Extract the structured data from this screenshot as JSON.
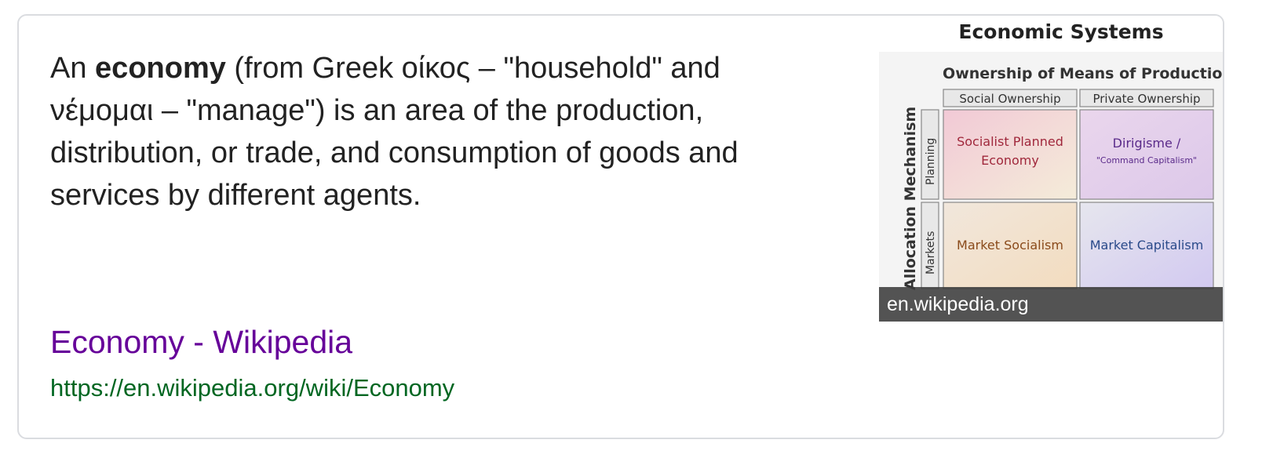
{
  "snippet": {
    "prefix": "An ",
    "term": "economy",
    "text": " (from Greek οίκος – \"household\" and νέμομαι – \"manage\") is an area of the production, distribution, or trade, and consumption of goods and services by different agents."
  },
  "result": {
    "title": "Economy - Wikipedia",
    "url": "https://en.wikipedia.org/wiki/Economy"
  },
  "thumbnail": {
    "caption": "en.wikipedia.org",
    "diagram": {
      "title": "Economic Systems",
      "column_header": "Ownership of Means of Production",
      "columns": [
        "Social Ownership",
        "Private Ownership"
      ],
      "row_header": "Allocation Mechanism",
      "rows": [
        "Planning",
        "Markets"
      ],
      "cells": {
        "social_planning_line1": "Socialist Planned",
        "social_planning_line2": "Economy",
        "private_planning_line1": "Dirigisme /",
        "private_planning_line2": "\"Command Capitalism\"",
        "social_markets": "Market Socialism",
        "private_markets": "Market Capitalism"
      }
    }
  },
  "colors": {
    "link_visited": "#660099",
    "url_green": "#006621",
    "text": "#222222"
  }
}
